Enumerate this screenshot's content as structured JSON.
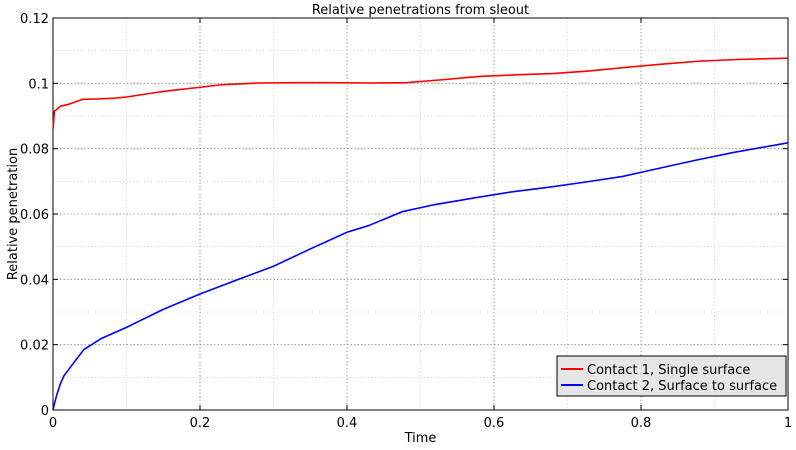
{
  "chart_data": {
    "type": "line",
    "title": "Relative penetrations from sleout",
    "xlabel": "Time",
    "ylabel": "Relative penetration",
    "xlim": [
      0,
      1
    ],
    "ylim": [
      0,
      0.12
    ],
    "xticks": [
      0,
      0.2,
      0.4,
      0.6,
      0.8,
      1
    ],
    "xtick_labels": [
      "0",
      "0.2",
      "0.4",
      "0.6",
      "0.8",
      "1"
    ],
    "yticks": [
      0,
      0.02,
      0.04,
      0.06,
      0.08,
      0.1,
      0.12
    ],
    "ytick_labels": [
      "0",
      "0.02",
      "0.04",
      "0.06",
      "0.08",
      "0.1",
      "0.12"
    ],
    "x_minor_step": 0.1,
    "y_minor_step": 0.01,
    "grid": true,
    "legend_position": "bottom-right",
    "series": [
      {
        "name": "Contact 1, Single surface",
        "color": "#ff0000",
        "x": [
          0,
          0.002,
          0.005,
          0.01,
          0.02,
          0.03,
          0.04,
          0.06,
          0.08,
          0.1,
          0.12,
          0.14,
          0.16,
          0.2,
          0.23,
          0.28,
          0.33,
          0.38,
          0.43,
          0.48,
          0.53,
          0.58,
          0.63,
          0.68,
          0.73,
          0.78,
          0.83,
          0.88,
          0.93,
          1.0
        ],
        "y": [
          0.086,
          0.0915,
          0.092,
          0.093,
          0.0935,
          0.0943,
          0.0951,
          0.0952,
          0.0954,
          0.0958,
          0.0965,
          0.0972,
          0.0978,
          0.0988,
          0.0996,
          0.1001,
          0.1002,
          0.1002,
          0.1001,
          0.1002,
          0.1011,
          0.1021,
          0.1026,
          0.103,
          0.1038,
          0.1049,
          0.1059,
          0.1068,
          0.1073,
          0.1077
        ]
      },
      {
        "name": "Contact 2, Surface to surface",
        "color": "#0000ff",
        "x": [
          0,
          0.002,
          0.005,
          0.01,
          0.015,
          0.02,
          0.03,
          0.042,
          0.065,
          0.1,
          0.15,
          0.2,
          0.25,
          0.3,
          0.35,
          0.4,
          0.43,
          0.475,
          0.52,
          0.575,
          0.625,
          0.675,
          0.725,
          0.775,
          0.825,
          0.875,
          0.925,
          1.0
        ],
        "y": [
          0.0,
          0.002,
          0.0045,
          0.008,
          0.0105,
          0.012,
          0.015,
          0.0185,
          0.0218,
          0.0253,
          0.0308,
          0.0355,
          0.0398,
          0.044,
          0.0493,
          0.0544,
          0.0565,
          0.0607,
          0.0629,
          0.065,
          0.0668,
          0.0682,
          0.0698,
          0.0715,
          0.074,
          0.0765,
          0.0788,
          0.0818
        ]
      }
    ]
  }
}
